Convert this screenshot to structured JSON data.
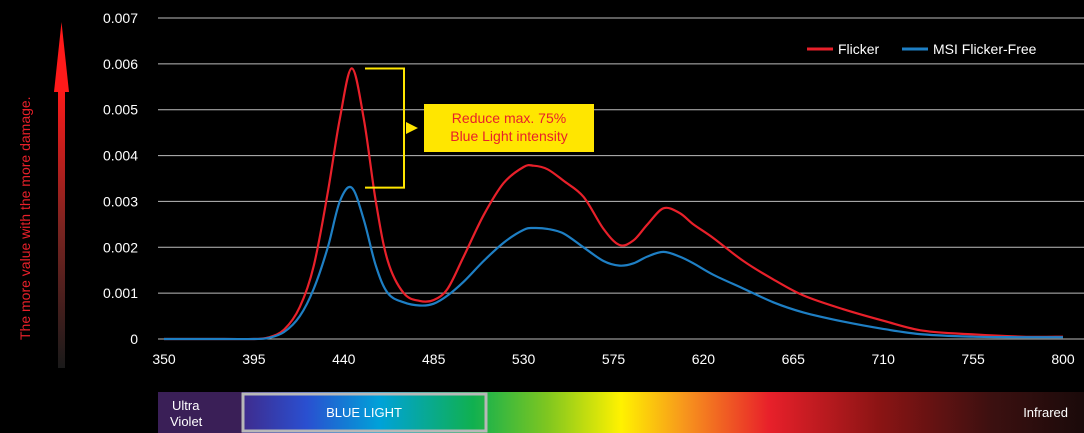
{
  "side_label": "The more value with the more damage.",
  "annotation": {
    "line1": "Reduce  max. 75%",
    "line2": "Blue Light intensity"
  },
  "spectrum_bar": {
    "ultraviolet_line1": "Ultra",
    "ultraviolet_line2": "Violet",
    "blue_light_label": "BLUE LIGHT",
    "infrared_label": "Infrared"
  },
  "colors": {
    "flicker": "#e8202a",
    "flicker_free": "#1e7fc4",
    "annotation_bg": "#ffe600",
    "annotation_text": "#e8202a",
    "arrow": "#e8202a"
  },
  "chart_data": {
    "type": "line",
    "xlim": [
      350,
      800
    ],
    "ylim": [
      0,
      0.007
    ],
    "xticks": [
      "350",
      "395",
      "440",
      "485",
      "530",
      "575",
      "620",
      "665",
      "710",
      "755",
      "800"
    ],
    "yticks": [
      "0",
      "0.001",
      "0.002",
      "0.003",
      "0.004",
      "0.005",
      "0.006",
      "0.007"
    ],
    "grid": true,
    "legend_position": "top-right",
    "series": [
      {
        "name": "Flicker",
        "color": "#e8202a",
        "x": [
          350,
          380,
          395,
          402,
          410,
          418,
          425,
          432,
          438,
          444,
          450,
          456,
          462,
          470,
          478,
          485,
          492,
          500,
          510,
          520,
          530,
          535,
          542,
          550,
          560,
          570,
          578,
          585,
          592,
          600,
          608,
          615,
          625,
          640,
          655,
          670,
          690,
          710,
          730,
          755,
          780,
          800
        ],
        "y": [
          0,
          0,
          0,
          3e-05,
          0.0002,
          0.0007,
          0.0016,
          0.0032,
          0.0048,
          0.0059,
          0.0048,
          0.003,
          0.0017,
          0.001,
          0.00083,
          0.00085,
          0.0011,
          0.0018,
          0.0027,
          0.0034,
          0.00375,
          0.00378,
          0.0037,
          0.00345,
          0.0031,
          0.0024,
          0.00205,
          0.00215,
          0.0025,
          0.00285,
          0.00275,
          0.0025,
          0.0022,
          0.0017,
          0.0013,
          0.00095,
          0.00065,
          0.0004,
          0.00018,
          0.0001,
          5e-05,
          5e-05
        ]
      },
      {
        "name": "MSI Flicker-Free",
        "color": "#1e7fc4",
        "x": [
          350,
          380,
          395,
          402,
          410,
          418,
          425,
          432,
          438,
          444,
          450,
          456,
          462,
          470,
          478,
          485,
          492,
          500,
          510,
          520,
          530,
          535,
          542,
          550,
          560,
          570,
          578,
          585,
          592,
          600,
          608,
          615,
          625,
          640,
          655,
          670,
          690,
          710,
          730,
          755,
          780,
          800
        ],
        "y": [
          0,
          0,
          0,
          2e-05,
          0.00015,
          0.0005,
          0.0011,
          0.002,
          0.003,
          0.0033,
          0.0026,
          0.0016,
          0.001,
          0.0008,
          0.00073,
          0.00077,
          0.00095,
          0.00125,
          0.0017,
          0.0021,
          0.00238,
          0.00242,
          0.0024,
          0.0023,
          0.002,
          0.0017,
          0.0016,
          0.00165,
          0.0018,
          0.0019,
          0.0018,
          0.00165,
          0.0014,
          0.0011,
          0.0008,
          0.00058,
          0.00038,
          0.00022,
          0.0001,
          5e-05,
          4e-05,
          4e-05
        ]
      }
    ]
  }
}
